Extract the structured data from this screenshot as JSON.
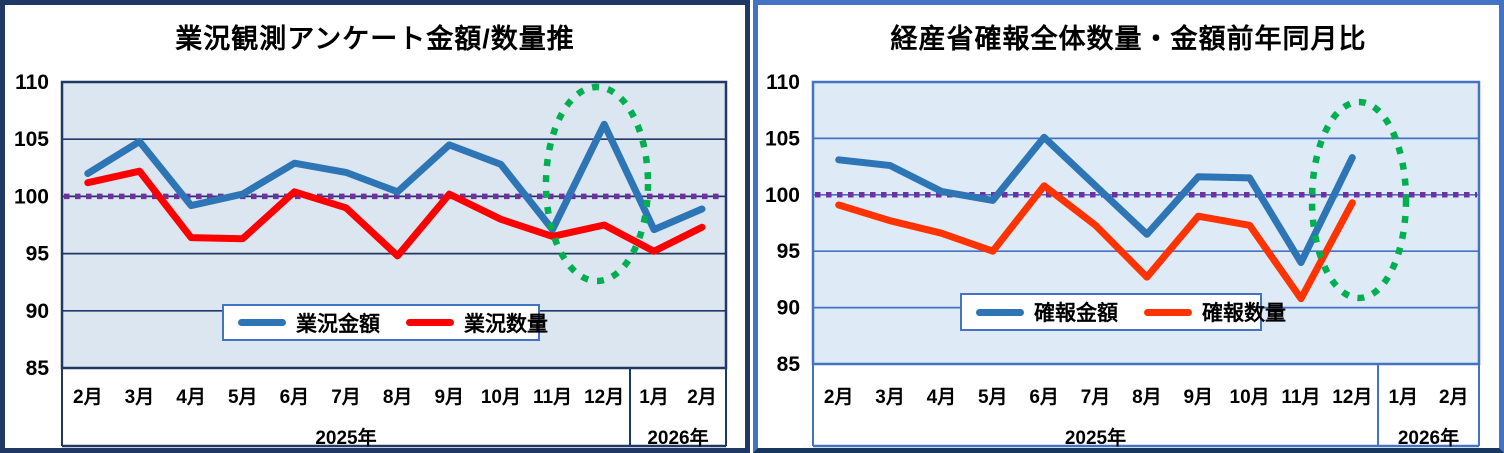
{
  "chart_data": [
    {
      "type": "line",
      "title": "業況観測アンケート金額/数量推",
      "categories": [
        "2月",
        "3月",
        "4月",
        "5月",
        "6月",
        "7月",
        "8月",
        "9月",
        "10月",
        "11月",
        "12月",
        "1月",
        "2月"
      ],
      "year_groups": [
        {
          "label": "2025年",
          "span": 11
        },
        {
          "label": "2026年",
          "span": 2
        }
      ],
      "series": [
        {
          "name": "業況金額",
          "color": "#2E75B6",
          "values": [
            102.0,
            104.8,
            99.2,
            100.2,
            102.9,
            102.1,
            100.4,
            104.5,
            102.8,
            97.1,
            106.3,
            97.1,
            98.9
          ]
        },
        {
          "name": "業況数量",
          "color": "#FF0000",
          "values": [
            101.2,
            102.2,
            96.4,
            96.3,
            100.4,
            99.0,
            94.8,
            100.2,
            98.0,
            96.5,
            97.5,
            95.2,
            97.3
          ]
        }
      ],
      "ylim": [
        85,
        110
      ],
      "yticks": [
        110,
        105,
        100,
        95,
        90,
        85
      ],
      "grid": true,
      "grid_color": "#1F3864",
      "plot_bg": "#DCE6F1",
      "reference_line": {
        "y": 100,
        "color": "#7030A0",
        "style": "dotted"
      },
      "annotation": {
        "shape": "ellipse",
        "color": "#00B050",
        "style": "dotted",
        "around_category": "12月"
      },
      "legend_position": "bottom-center-inside"
    },
    {
      "type": "line",
      "title": "経産省確報全体数量・金額前年同月比",
      "categories": [
        "2月",
        "3月",
        "4月",
        "5月",
        "6月",
        "7月",
        "8月",
        "9月",
        "10月",
        "11月",
        "12月",
        "1月",
        "2月"
      ],
      "year_groups": [
        {
          "label": "2025年",
          "span": 11
        },
        {
          "label": "2026年",
          "span": 2
        }
      ],
      "series": [
        {
          "name": "確報金額",
          "color": "#2E75B6",
          "values": [
            103.1,
            102.6,
            100.3,
            99.5,
            105.1,
            100.8,
            96.5,
            101.6,
            101.5,
            94.0,
            103.3,
            null,
            null
          ]
        },
        {
          "name": "確報数量",
          "color": "#FF3300",
          "values": [
            99.1,
            97.7,
            96.6,
            95.0,
            100.8,
            97.3,
            92.7,
            98.1,
            97.3,
            90.8,
            99.3,
            null,
            null
          ]
        }
      ],
      "ylim": [
        85,
        110
      ],
      "yticks": [
        110,
        105,
        100,
        95,
        90,
        85
      ],
      "grid": true,
      "grid_color": "#4472C4",
      "plot_bg": "#DEEAF6",
      "reference_line": {
        "y": 100,
        "color": "#7030A0",
        "style": "dotted"
      },
      "annotation": {
        "shape": "ellipse",
        "color": "#00B050",
        "style": "dotted",
        "around_category": "12月"
      },
      "legend_position": "bottom-center-inside"
    }
  ]
}
